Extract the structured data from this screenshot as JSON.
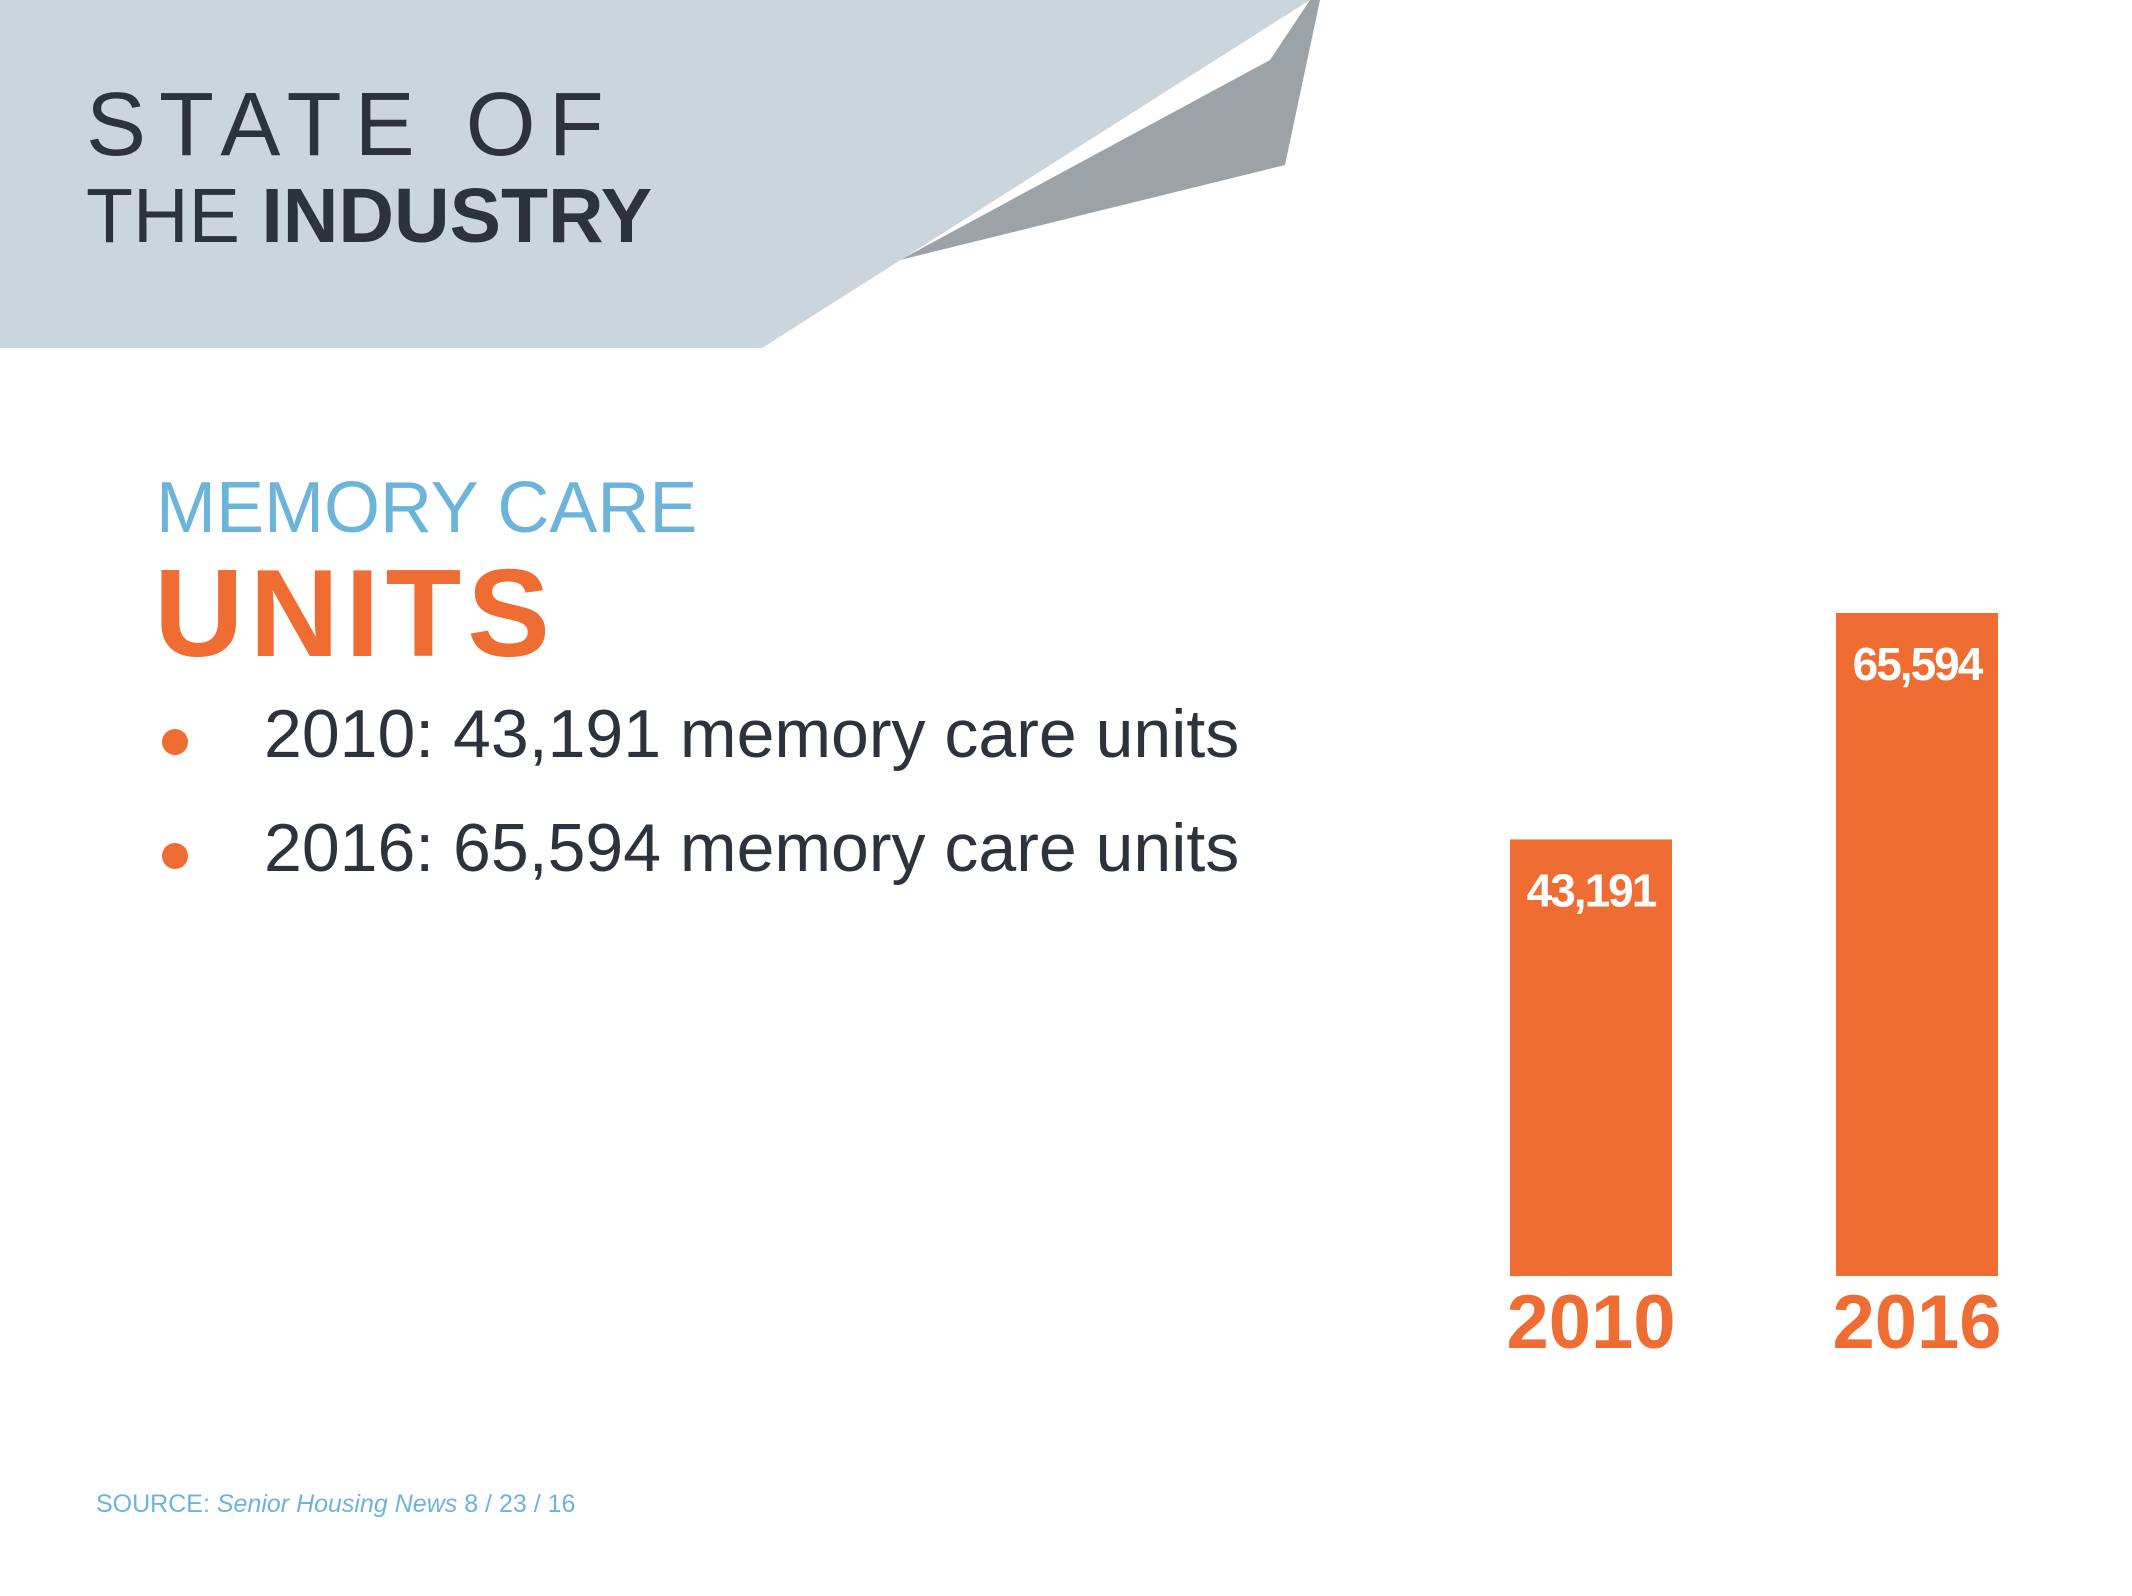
{
  "header": {
    "line1": "STATE OF",
    "line2_normal": "THE",
    "line2_bold": "INDUSTRY",
    "banner_color": "#cbd6dc",
    "accent_color": "#9ca3a8"
  },
  "section": {
    "subtitle": "MEMORY CARE",
    "headline": "UNITS"
  },
  "bullets": [
    "2010: 43,191 memory care units",
    "2016: 65,594 memory care units"
  ],
  "chart_data": {
    "type": "bar",
    "categories": [
      "2010",
      "2016"
    ],
    "values": [
      43191,
      65594
    ],
    "data_labels": [
      "43,191",
      "65,594"
    ],
    "title": "",
    "xlabel": "",
    "ylabel": "",
    "ylim": [
      0,
      65594
    ],
    "grid": false,
    "legend": "none",
    "bar_color": "#ef6c33",
    "label_color": "#ffffff",
    "category_color": "#ef6c33"
  },
  "source": {
    "prefix": "SOURCE: ",
    "publication": "Senior Housing News",
    "date": " 8 / 23 / 16"
  },
  "colors": {
    "text_dark": "#2d333d",
    "blue": "#6cb4da",
    "orange": "#ef6c33"
  }
}
